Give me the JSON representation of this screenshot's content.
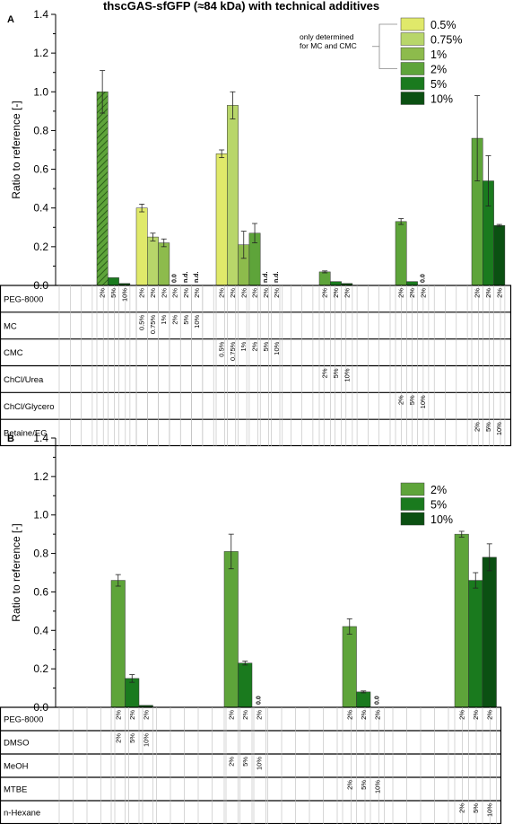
{
  "figure_title": "thscGAS-sfGFP (≈84 kDa) with technical additives",
  "colors": {
    "0.5%": "#e0e96a",
    "0.75%": "#b8d66a",
    "1%": "#8dbb4c",
    "2%": "#5ea43a",
    "5%": "#1a7a1e",
    "10%": "#0b5012"
  },
  "chart_data": [
    {
      "panel_label": "A",
      "type": "bar",
      "ylabel": "Ratio to reference [-]",
      "ylim": [
        0,
        1.4
      ],
      "yticks": [
        "0.0",
        "0.2",
        "0.4",
        "0.6",
        "0.8",
        "1.0",
        "1.2",
        "1.4"
      ],
      "legend": {
        "placement": "top-right",
        "entries": [
          "0.5%",
          "0.75%",
          "1%",
          "2%",
          "5%",
          "10%"
        ],
        "note": [
          "only determined",
          "for MC and CMC"
        ]
      },
      "rows": [
        "PEG-8000",
        "MC",
        "CMC",
        "ChCl/Urea",
        "ChCl/Glycero",
        "Betaine/EG"
      ],
      "groups": [
        {
          "bars": [
            {
              "value": 1.0,
              "error": 0.11,
              "color": "2%",
              "hatch": true,
              "cells": [
                "2%",
                "",
                "",
                "",
                "",
                ""
              ]
            },
            {
              "value": 0.04,
              "color": "5%",
              "cells": [
                "5%",
                "",
                "",
                "",
                "",
                ""
              ]
            },
            {
              "value": 0.01,
              "color": "10%",
              "cells": [
                "10%",
                "",
                "",
                "",
                "",
                ""
              ]
            }
          ]
        },
        {
          "bars": [
            {
              "value": 0.4,
              "error": 0.02,
              "color": "0.5%",
              "cells": [
                "2%",
                "0.5%",
                "",
                "",
                "",
                ""
              ]
            },
            {
              "value": 0.25,
              "error": 0.02,
              "color": "0.75%",
              "cells": [
                "2%",
                "0.75%",
                "",
                "",
                "",
                ""
              ]
            },
            {
              "value": 0.22,
              "error": 0.02,
              "color": "1%",
              "cells": [
                "2%",
                "1%",
                "",
                "",
                "",
                ""
              ]
            },
            {
              "value": 0,
              "label": "0.0",
              "color": "2%",
              "cells": [
                "2%",
                "2%",
                "",
                "",
                "",
                ""
              ]
            },
            {
              "value": 0,
              "label": "n.d.",
              "color": "5%",
              "cells": [
                "2%",
                "5%",
                "",
                "",
                "",
                ""
              ]
            },
            {
              "value": 0,
              "label": "n.d.",
              "color": "10%",
              "cells": [
                "2%",
                "10%",
                "",
                "",
                "",
                ""
              ]
            }
          ]
        },
        {
          "bars": [
            {
              "value": 0.68,
              "error": 0.02,
              "color": "0.5%",
              "cells": [
                "2%",
                "",
                "0.5%",
                "",
                "",
                ""
              ]
            },
            {
              "value": 0.93,
              "error": 0.07,
              "color": "0.75%",
              "cells": [
                "2%",
                "",
                "0.75%",
                "",
                "",
                ""
              ]
            },
            {
              "value": 0.21,
              "error": 0.07,
              "color": "1%",
              "cells": [
                "2%",
                "",
                "1%",
                "",
                "",
                ""
              ]
            },
            {
              "value": 0.27,
              "error": 0.05,
              "color": "2%",
              "cells": [
                "2%",
                "",
                "2%",
                "",
                "",
                ""
              ]
            },
            {
              "value": 0,
              "label": "n.d.",
              "color": "5%",
              "cells": [
                "2%",
                "",
                "5%",
                "",
                "",
                ""
              ]
            },
            {
              "value": 0,
              "label": "n.d.",
              "color": "10%",
              "cells": [
                "2%",
                "",
                "10%",
                "",
                "",
                ""
              ]
            }
          ]
        },
        {
          "bars": [
            {
              "value": 0.07,
              "error": 0.005,
              "color": "2%",
              "cells": [
                "2%",
                "",
                "",
                "2%",
                "",
                ""
              ]
            },
            {
              "value": 0.02,
              "color": "5%",
              "cells": [
                "2%",
                "",
                "",
                "5%",
                "",
                ""
              ]
            },
            {
              "value": 0.01,
              "color": "10%",
              "cells": [
                "2%",
                "",
                "",
                "10%",
                "",
                ""
              ]
            }
          ]
        },
        {
          "bars": [
            {
              "value": 0.33,
              "error": 0.015,
              "color": "2%",
              "cells": [
                "2%",
                "",
                "",
                "",
                "2%",
                ""
              ]
            },
            {
              "value": 0.02,
              "color": "5%",
              "cells": [
                "2%",
                "",
                "",
                "",
                "5%",
                ""
              ]
            },
            {
              "value": 0,
              "label": "0.0",
              "color": "10%",
              "cells": [
                "2%",
                "",
                "",
                "",
                "10%",
                ""
              ]
            }
          ]
        },
        {
          "bars": [
            {
              "value": 0.76,
              "error": 0.22,
              "color": "2%",
              "cells": [
                "2%",
                "",
                "",
                "",
                "",
                "2%"
              ]
            },
            {
              "value": 0.54,
              "error": 0.13,
              "color": "5%",
              "cells": [
                "2%",
                "",
                "",
                "",
                "",
                "5%"
              ]
            },
            {
              "value": 0.31,
              "error": 0.005,
              "color": "10%",
              "cells": [
                "2%",
                "",
                "",
                "",
                "",
                "10%"
              ]
            }
          ]
        }
      ]
    },
    {
      "panel_label": "B",
      "type": "bar",
      "ylabel": "Ratio to reference [-]",
      "ylim": [
        0,
        1.4
      ],
      "yticks": [
        "0.0",
        "0.2",
        "0.4",
        "0.6",
        "0.8",
        "1.0",
        "1.2",
        "1.4"
      ],
      "legend": {
        "placement": "top-right",
        "entries": [
          "2%",
          "5%",
          "10%"
        ]
      },
      "rows": [
        "PEG-8000",
        "DMSO",
        "MeOH",
        "MTBE",
        "n-Hexane"
      ],
      "groups": [
        {
          "bars": [
            {
              "value": 0.66,
              "error": 0.03,
              "color": "2%",
              "cells": [
                "2%",
                "2%",
                "",
                "",
                ""
              ]
            },
            {
              "value": 0.15,
              "error": 0.02,
              "color": "5%",
              "cells": [
                "2%",
                "5%",
                "",
                "",
                ""
              ]
            },
            {
              "value": 0.01,
              "color": "10%",
              "cells": [
                "2%",
                "10%",
                "",
                "",
                ""
              ]
            }
          ]
        },
        {
          "bars": [
            {
              "value": 0.81,
              "error": 0.09,
              "color": "2%",
              "cells": [
                "2%",
                "",
                "2%",
                "",
                ""
              ]
            },
            {
              "value": 0.23,
              "error": 0.01,
              "color": "5%",
              "cells": [
                "2%",
                "",
                "5%",
                "",
                ""
              ]
            },
            {
              "value": 0,
              "label": "0.0",
              "color": "10%",
              "cells": [
                "2%",
                "",
                "10%",
                "",
                ""
              ]
            }
          ]
        },
        {
          "bars": [
            {
              "value": 0.42,
              "error": 0.04,
              "color": "2%",
              "cells": [
                "2%",
                "",
                "",
                "2%",
                ""
              ]
            },
            {
              "value": 0.08,
              "error": 0.005,
              "color": "5%",
              "cells": [
                "2%",
                "",
                "",
                "5%",
                ""
              ]
            },
            {
              "value": 0,
              "label": "0.0",
              "color": "10%",
              "cells": [
                "2%",
                "",
                "",
                "10%",
                ""
              ]
            }
          ]
        },
        {
          "bars": [
            {
              "value": 0.9,
              "error": 0.015,
              "color": "2%",
              "cells": [
                "2%",
                "",
                "",
                "",
                "2%"
              ]
            },
            {
              "value": 0.66,
              "error": 0.04,
              "color": "5%",
              "cells": [
                "2%",
                "",
                "",
                "",
                "5%"
              ]
            },
            {
              "value": 0.78,
              "error": 0.07,
              "color": "10%",
              "cells": [
                "2%",
                "",
                "",
                "",
                "10%"
              ]
            }
          ]
        }
      ]
    }
  ]
}
